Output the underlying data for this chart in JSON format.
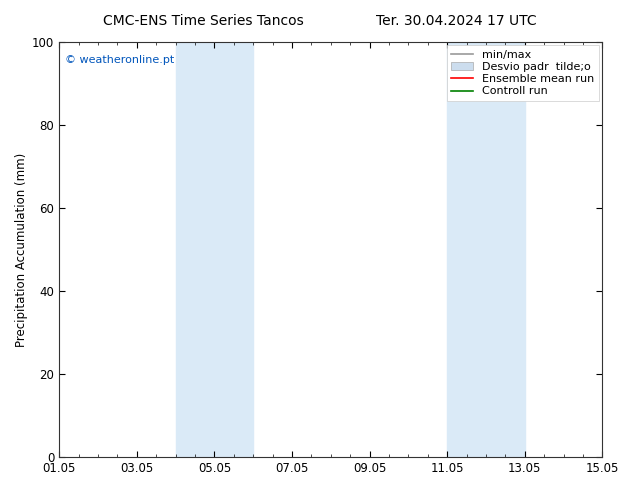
{
  "title_left": "CMC-ENS Time Series Tancos",
  "title_right": "Ter. 30.04.2024 17 UTC",
  "ylabel": "Precipitation Accumulation (mm)",
  "ylim_min": 0,
  "ylim_max": 100,
  "yticks": [
    0,
    20,
    40,
    60,
    80,
    100
  ],
  "shaded_bands": [
    {
      "x_start": 3.0,
      "x_end": 4.0,
      "color": "#daeaf7"
    },
    {
      "x_start": 4.0,
      "x_end": 5.0,
      "color": "#daeaf7"
    },
    {
      "x_start": 10.0,
      "x_end": 11.0,
      "color": "#daeaf7"
    },
    {
      "x_start": 11.0,
      "x_end": 12.0,
      "color": "#daeaf7"
    }
  ],
  "watermark_text": "© weatheronline.pt",
  "watermark_color": "#0055bb",
  "legend_entries": [
    {
      "label": "min/max",
      "color": "#999999",
      "lw": 1.2,
      "style": "solid"
    },
    {
      "label": "Desvio padr  tilde;o",
      "color": "#ccddee",
      "lw": 6,
      "style": "solid"
    },
    {
      "label": "Ensemble mean run",
      "color": "red",
      "lw": 1.2,
      "style": "solid"
    },
    {
      "label": "Controll run",
      "color": "green",
      "lw": 1.2,
      "style": "solid"
    }
  ],
  "bg_color": "#ffffff",
  "xtick_labels": [
    "01.05",
    "03.05",
    "05.05",
    "07.05",
    "09.05",
    "11.05",
    "13.05",
    "15.05"
  ],
  "xtick_positions": [
    0,
    2,
    4,
    6,
    8,
    10,
    12,
    14
  ],
  "xlim_min": 0,
  "xlim_max": 14,
  "font_size": 8.5,
  "title_font_size": 10
}
